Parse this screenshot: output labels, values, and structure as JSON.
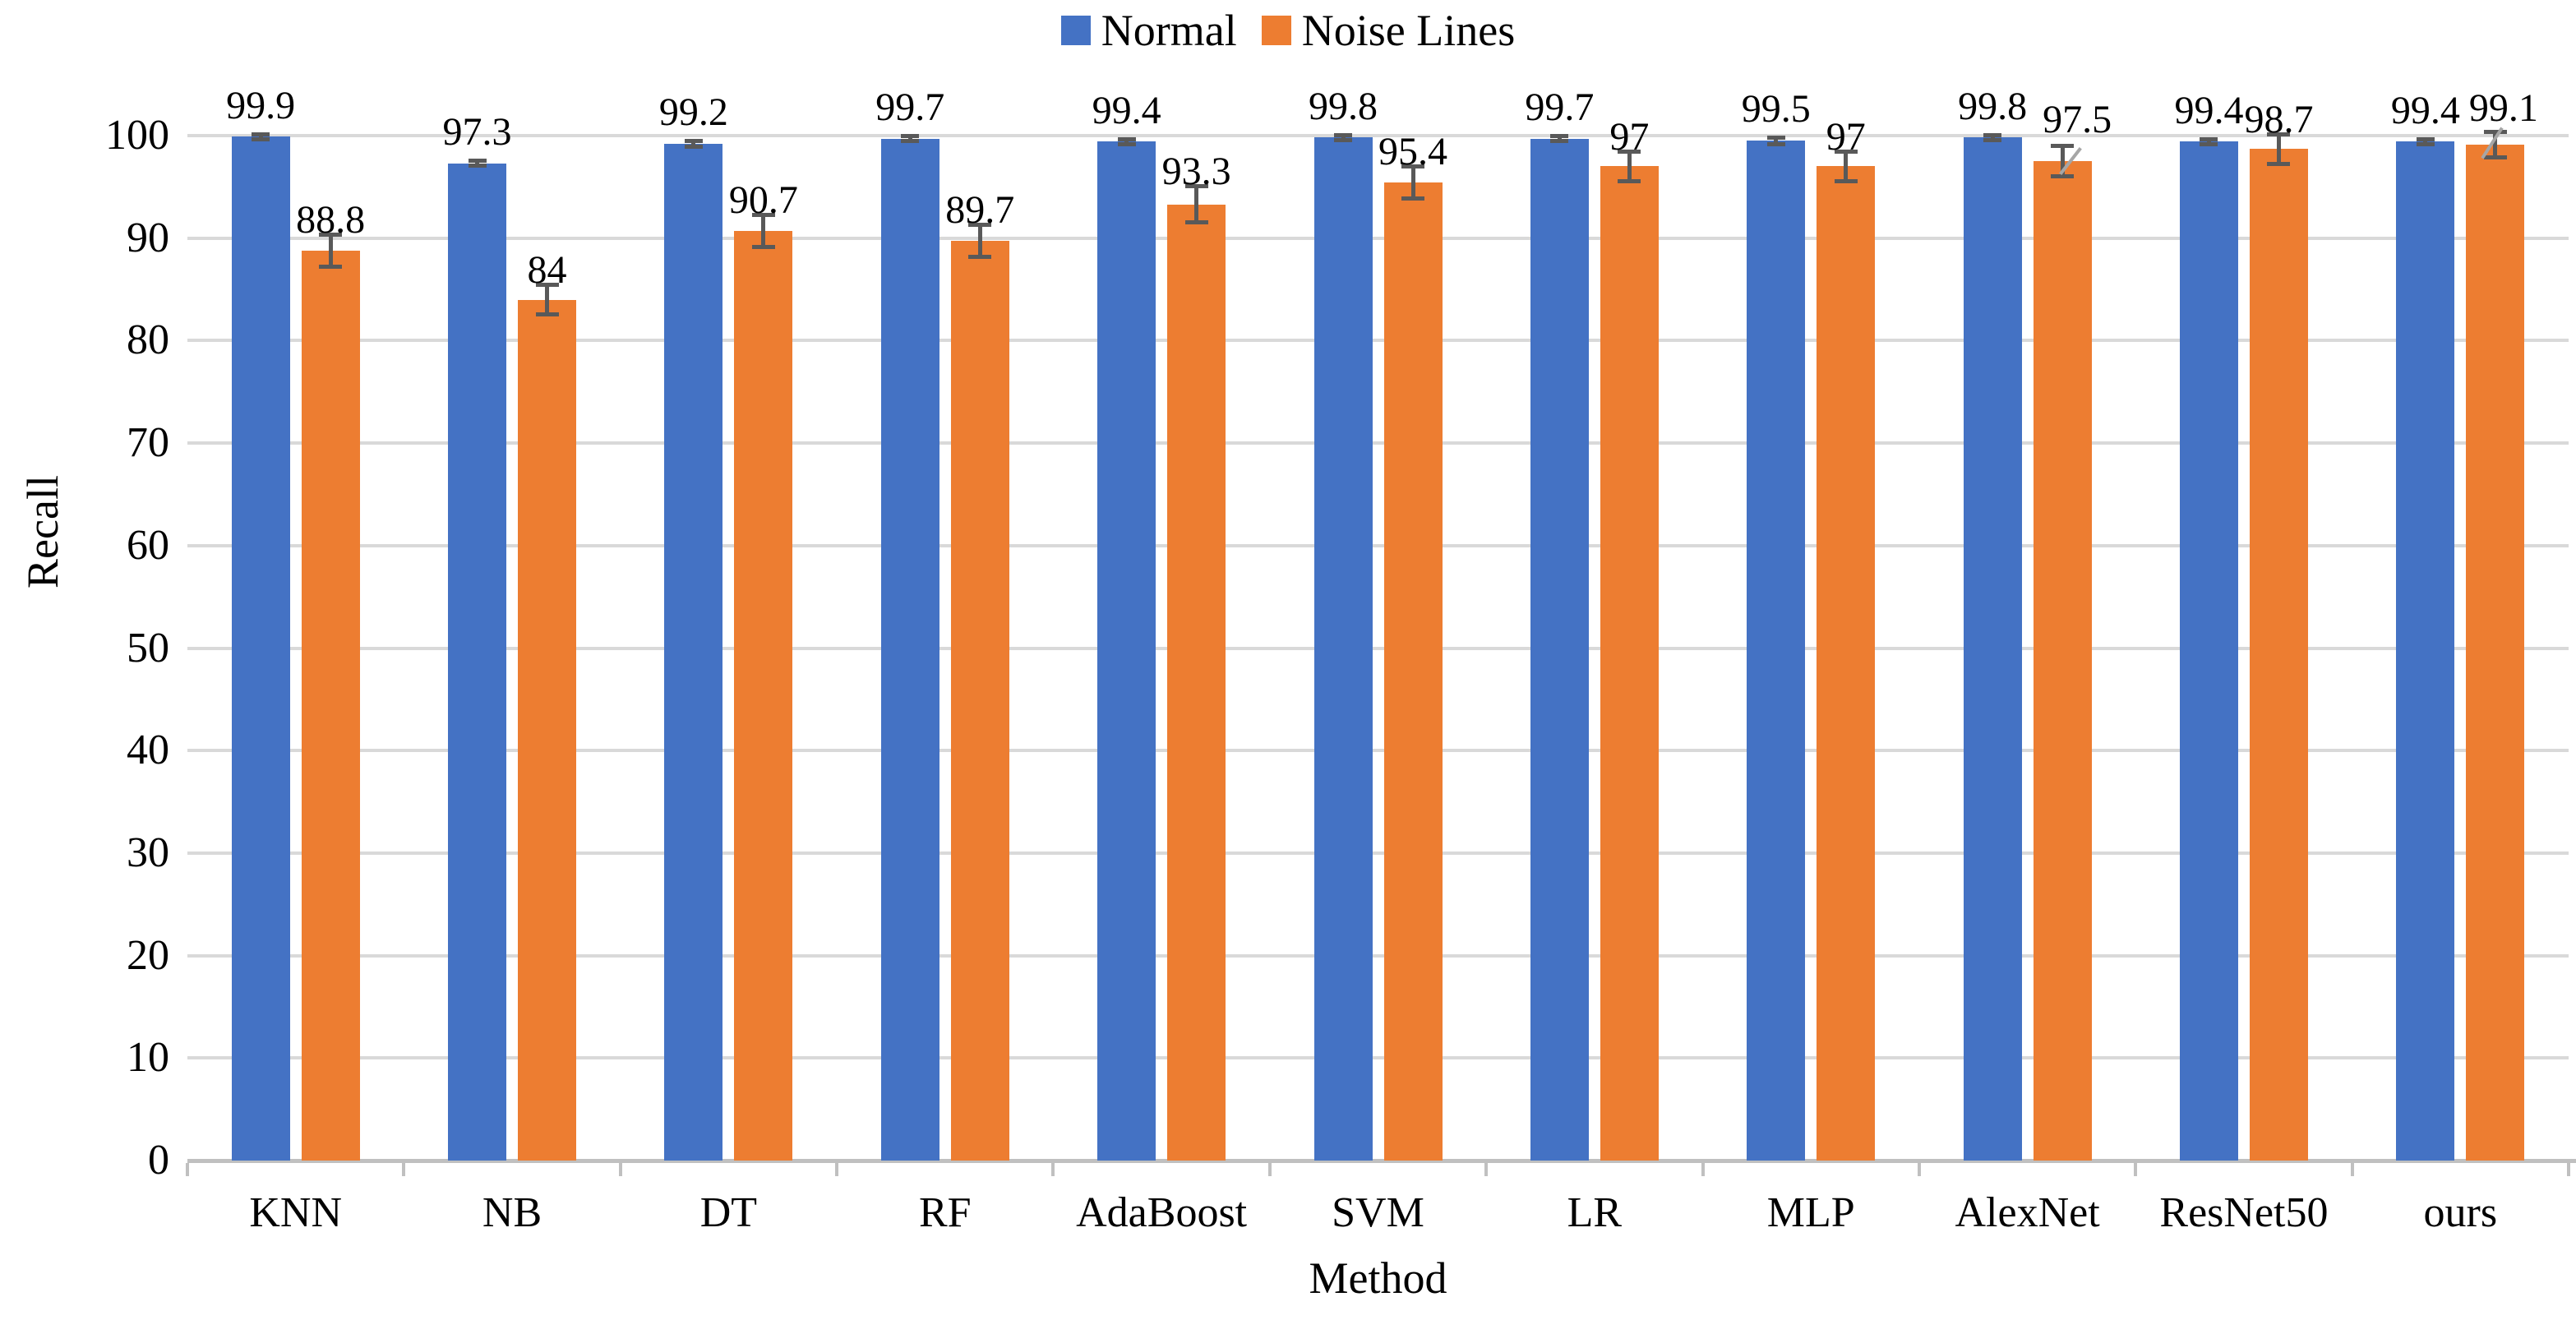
{
  "chart_data": {
    "type": "bar",
    "title": "",
    "categories": [
      "KNN",
      "NB",
      "DT",
      "RF",
      "AdaBoost",
      "SVM",
      "LR",
      "MLP",
      "AlexNet",
      "ResNet50",
      "ours"
    ],
    "series": [
      {
        "name": "Normal",
        "color": "#4472C4",
        "values": [
          99.9,
          97.3,
          99.2,
          99.7,
          99.4,
          99.8,
          99.7,
          99.5,
          99.8,
          99.4,
          99.4
        ],
        "errors": [
          0.3,
          0.3,
          0.3,
          0.3,
          0.3,
          0.3,
          0.3,
          0.35,
          0.3,
          0.3,
          0.3
        ]
      },
      {
        "name": "Noise Lines",
        "color": "#ED7D31",
        "values": [
          88.8,
          84,
          90.7,
          89.7,
          93.3,
          95.4,
          97,
          97,
          97.5,
          98.7,
          99.1
        ],
        "errors": [
          1.6,
          1.5,
          1.6,
          1.6,
          1.8,
          1.6,
          1.5,
          1.5,
          1.5,
          1.5,
          1.3
        ]
      }
    ],
    "xlabel": "Method",
    "ylabel": "Recall",
    "ylim": [
      0,
      100
    ],
    "yticks": [
      0,
      10,
      20,
      30,
      40,
      50,
      60,
      70,
      80,
      90,
      100
    ],
    "legend_position": "top",
    "grid": true,
    "colors": {
      "error_bar": "#595959",
      "gridline": "#D9D9D9",
      "axis_line": "#C0C0C0",
      "leader_line": "#A6A6A6",
      "text": "#000000"
    }
  }
}
